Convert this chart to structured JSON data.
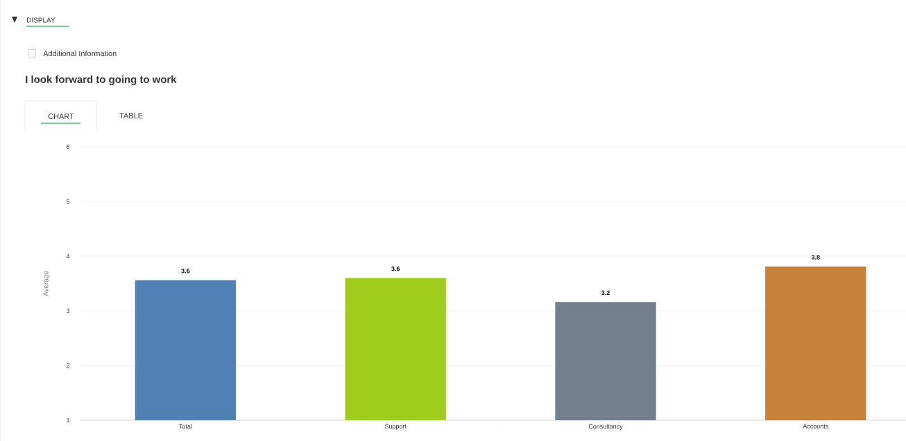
{
  "chart_data": {
    "type": "bar",
    "title": "I look forward to going to work",
    "ylabel": "Average",
    "categories": [
      "Total",
      "Support",
      "Consultancy",
      "Accounts"
    ],
    "values": [
      3.56,
      3.6,
      3.16,
      3.81
    ],
    "value_labels": [
      "3.6",
      "3.6",
      "3.2",
      "3.8"
    ],
    "colors": [
      "#4f81b7",
      "#9fcd1e",
      "#737f8f",
      "#c8813a"
    ],
    "ylim": [
      1,
      6
    ],
    "yticks": [
      1,
      2,
      3,
      4,
      5,
      6
    ],
    "grid": "y",
    "annotations": [
      "DISPLAY",
      "Additional Information",
      "CHART",
      "TABLE"
    ]
  }
}
